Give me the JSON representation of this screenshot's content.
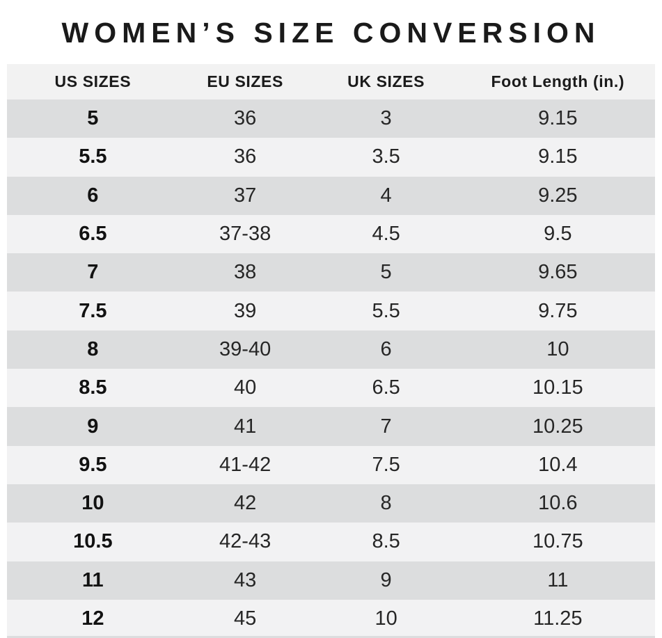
{
  "title": "WOMEN’S SIZE CONVERSION",
  "chart_data": {
    "type": "table",
    "title": "WOMEN’S SIZE CONVERSION",
    "columns": [
      "US SIZES",
      "EU SIZES",
      "UK SIZES",
      "Foot Length (in.)"
    ],
    "rows": [
      [
        "5",
        "36",
        "3",
        "9.15"
      ],
      [
        "5.5",
        "36",
        "3.5",
        "9.15"
      ],
      [
        "6",
        "37",
        "4",
        "9.25"
      ],
      [
        "6.5",
        "37-38",
        "4.5",
        "9.5"
      ],
      [
        "7",
        "38",
        "5",
        "9.65"
      ],
      [
        "7.5",
        "39",
        "5.5",
        "9.75"
      ],
      [
        "8",
        "39-40",
        "6",
        "10"
      ],
      [
        "8.5",
        "40",
        "6.5",
        "10.15"
      ],
      [
        "9",
        "41",
        "7",
        "10.25"
      ],
      [
        "9.5",
        "41-42",
        "7.5",
        "10.4"
      ],
      [
        "10",
        "42",
        "8",
        "10.6"
      ],
      [
        "10.5",
        "42-43",
        "8.5",
        "10.75"
      ],
      [
        "11",
        "43",
        "9",
        "11"
      ],
      [
        "12",
        "45",
        "10",
        "11.25"
      ]
    ],
    "layout": {
      "first_column_bold": true,
      "alternating_rows": "dark-first"
    }
  },
  "colors": {
    "background": "#ffffff",
    "row_dark": "#dcddde",
    "row_light": "#f2f2f3",
    "header_bg": "#f2f2f2",
    "text": "#262626",
    "text_strong": "#121212",
    "title": "#1a1a1a"
  }
}
